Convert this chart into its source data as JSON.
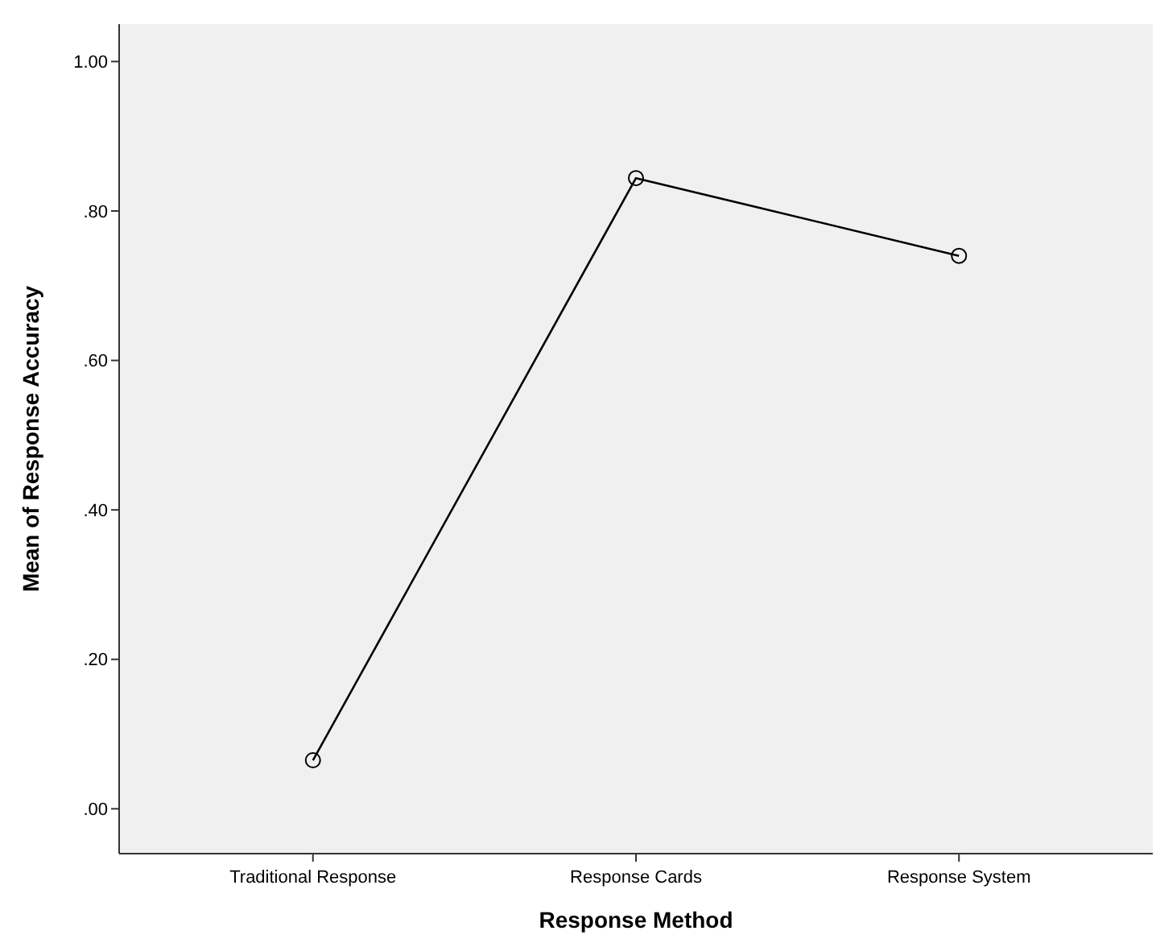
{
  "chart_data": {
    "type": "line",
    "xlabel": "Response Method",
    "ylabel": "Mean of Response Accuracy",
    "categories": [
      "Traditional Response",
      "Response Cards",
      "Response System"
    ],
    "series": [
      {
        "color": "#000000",
        "values": [
          0.065,
          0.844,
          0.74
        ]
      }
    ],
    "ylim": [
      -0.06,
      1.05
    ],
    "yticks": [
      {
        "value": 0,
        "label": ".00"
      },
      {
        "value": 0.2,
        "label": ".20"
      },
      {
        "value": 0.4,
        "label": ".40"
      },
      {
        "value": 0.6,
        "label": ".60"
      },
      {
        "value": 0.8,
        "label": ".80"
      },
      {
        "value": 1,
        "label": "1.00"
      }
    ],
    "marker": "circle",
    "grid": false
  }
}
